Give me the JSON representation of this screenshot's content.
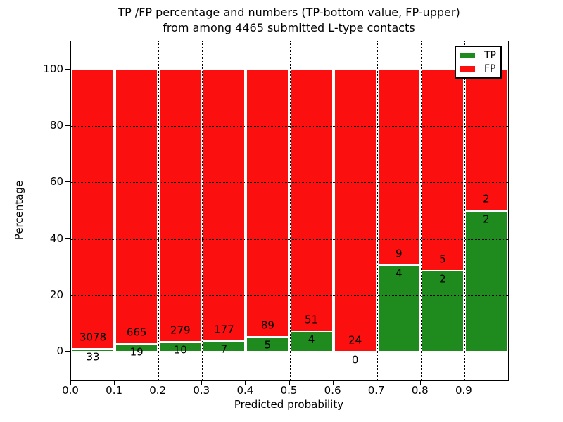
{
  "figure": {
    "title_line1": "TP /FP percentage and numbers (TP-bottom value, FP-upper)",
    "title_line2": "from among 4465 submitted L-type contacts"
  },
  "axes": {
    "xlabel": "Predicted probability",
    "ylabel": "Percentage",
    "y_tick_labels": [
      "0",
      "20",
      "40",
      "60",
      "80",
      "100"
    ],
    "x_tick_labels": [
      "0.0",
      "0.1",
      "0.2",
      "0.3",
      "0.4",
      "0.5",
      "0.6",
      "0.7",
      "0.8",
      "0.9"
    ]
  },
  "legend": {
    "items": [
      {
        "label": "TP",
        "color": "#1f8b1f"
      },
      {
        "label": "FP",
        "color": "#fb0f0f"
      }
    ]
  },
  "chart_data": {
    "type": "bar",
    "stacked": true,
    "normalized_to_percent": true,
    "title": "TP /FP percentage and numbers (TP-bottom value, FP-upper) from among 4465 submitted L-type contacts",
    "xlabel": "Predicted probability",
    "ylabel": "Percentage",
    "xlim": [
      0.0,
      1.0
    ],
    "ylim": [
      -10,
      110
    ],
    "yticks": [
      0,
      20,
      40,
      60,
      80,
      100
    ],
    "xticks": [
      0.0,
      0.1,
      0.2,
      0.3,
      0.4,
      0.5,
      0.6,
      0.7,
      0.8,
      0.9
    ],
    "grid": true,
    "legend_position": "upper right",
    "bin_width": 0.1,
    "categories": [
      "0.0-0.1",
      "0.1-0.2",
      "0.2-0.3",
      "0.3-0.4",
      "0.4-0.5",
      "0.5-0.6",
      "0.6-0.7",
      "0.7-0.8",
      "0.8-0.9",
      "0.9-1.0"
    ],
    "series": [
      {
        "name": "TP",
        "color": "#1f8b1f",
        "counts": [
          33,
          19,
          10,
          7,
          5,
          4,
          0,
          4,
          2,
          2
        ]
      },
      {
        "name": "FP",
        "color": "#fb0f0f",
        "counts": [
          3078,
          665,
          279,
          177,
          89,
          51,
          24,
          9,
          5,
          2
        ]
      }
    ],
    "tp_percent": [
      1.06,
      2.78,
      3.46,
      3.8,
      5.32,
      7.27,
      0.0,
      30.77,
      28.57,
      50.0
    ],
    "total_contacts": 4465
  }
}
